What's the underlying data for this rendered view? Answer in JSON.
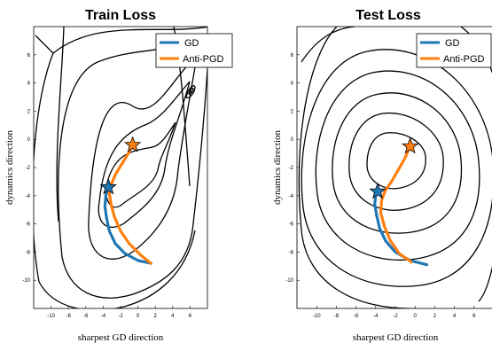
{
  "chart_data": [
    {
      "type": "line",
      "title": "Train Loss",
      "xlabel": "sharpest GD direction",
      "ylabel": "dynamics direction",
      "xlim": [
        -12,
        8
      ],
      "ylim": [
        -12,
        8
      ],
      "xticks": [
        -10,
        -8,
        -6,
        -4,
        -2,
        0,
        2,
        4,
        6
      ],
      "yticks": [
        -10,
        -8,
        -6,
        -4,
        -2,
        0,
        2,
        4,
        6
      ],
      "legend_position": "top-right",
      "grid": false,
      "colors": {
        "GD": "#1f77b4",
        "Anti-PGD": "#ff7f0e"
      },
      "series": [
        {
          "name": "GD",
          "x": [
            1.5,
            0.0,
            -1.5,
            -2.6,
            -3.3,
            -3.6,
            -3.8,
            -3.7,
            -3.4
          ],
          "y": [
            -8.8,
            -8.6,
            -8.1,
            -7.4,
            -6.5,
            -5.6,
            -4.8,
            -4.0,
            -3.4
          ]
        },
        {
          "name": "Anti-PGD",
          "x": [
            1.5,
            0.3,
            -1.0,
            -2.0,
            -2.7,
            -3.1,
            -3.3,
            -3.0,
            -2.6,
            -2.0,
            -1.5,
            -1.1,
            -0.8,
            -0.6
          ],
          "y": [
            -8.8,
            -8.2,
            -7.4,
            -6.5,
            -5.5,
            -4.6,
            -3.8,
            -3.1,
            -2.5,
            -1.9,
            -1.4,
            -1.0,
            -0.6,
            -0.4
          ]
        }
      ],
      "markers": [
        {
          "series": "GD",
          "shape": "star",
          "x": -3.4,
          "y": -3.4
        },
        {
          "series": "Anti-PGD",
          "shape": "star",
          "x": -0.6,
          "y": -0.4
        }
      ]
    },
    {
      "type": "line",
      "title": "Test Loss",
      "xlabel": "sharpest GD direction",
      "ylabel": "dynamics direction",
      "xlim": [
        -12,
        8
      ],
      "ylim": [
        -12,
        8
      ],
      "xticks": [
        -10,
        -8,
        -6,
        -4,
        -2,
        0,
        2,
        4,
        6
      ],
      "yticks": [
        -10,
        -8,
        -6,
        -4,
        -2,
        0,
        2,
        4,
        6
      ],
      "legend_position": "top-right",
      "grid": false,
      "colors": {
        "GD": "#1f77b4",
        "Anti-PGD": "#ff7f0e"
      },
      "series": [
        {
          "name": "GD",
          "x": [
            1.2,
            -0.5,
            -2.0,
            -3.0,
            -3.6,
            -3.9,
            -4.1,
            -4.0,
            -3.8
          ],
          "y": [
            -8.9,
            -8.6,
            -8.0,
            -7.2,
            -6.3,
            -5.4,
            -4.6,
            -4.0,
            -3.7
          ]
        },
        {
          "name": "Anti-PGD",
          "x": [
            -0.4,
            -1.6,
            -2.5,
            -3.1,
            -3.5,
            -3.4,
            -3.0,
            -2.4,
            -1.9,
            -1.4,
            -1.0,
            -0.7,
            -0.5
          ],
          "y": [
            -8.7,
            -8.1,
            -7.2,
            -6.2,
            -5.2,
            -4.3,
            -3.6,
            -3.0,
            -2.4,
            -1.8,
            -1.3,
            -0.8,
            -0.5
          ]
        }
      ],
      "markers": [
        {
          "series": "GD",
          "shape": "star",
          "x": -3.8,
          "y": -3.7
        },
        {
          "series": "Anti-PGD",
          "shape": "star",
          "x": -0.5,
          "y": -0.5
        }
      ]
    }
  ]
}
